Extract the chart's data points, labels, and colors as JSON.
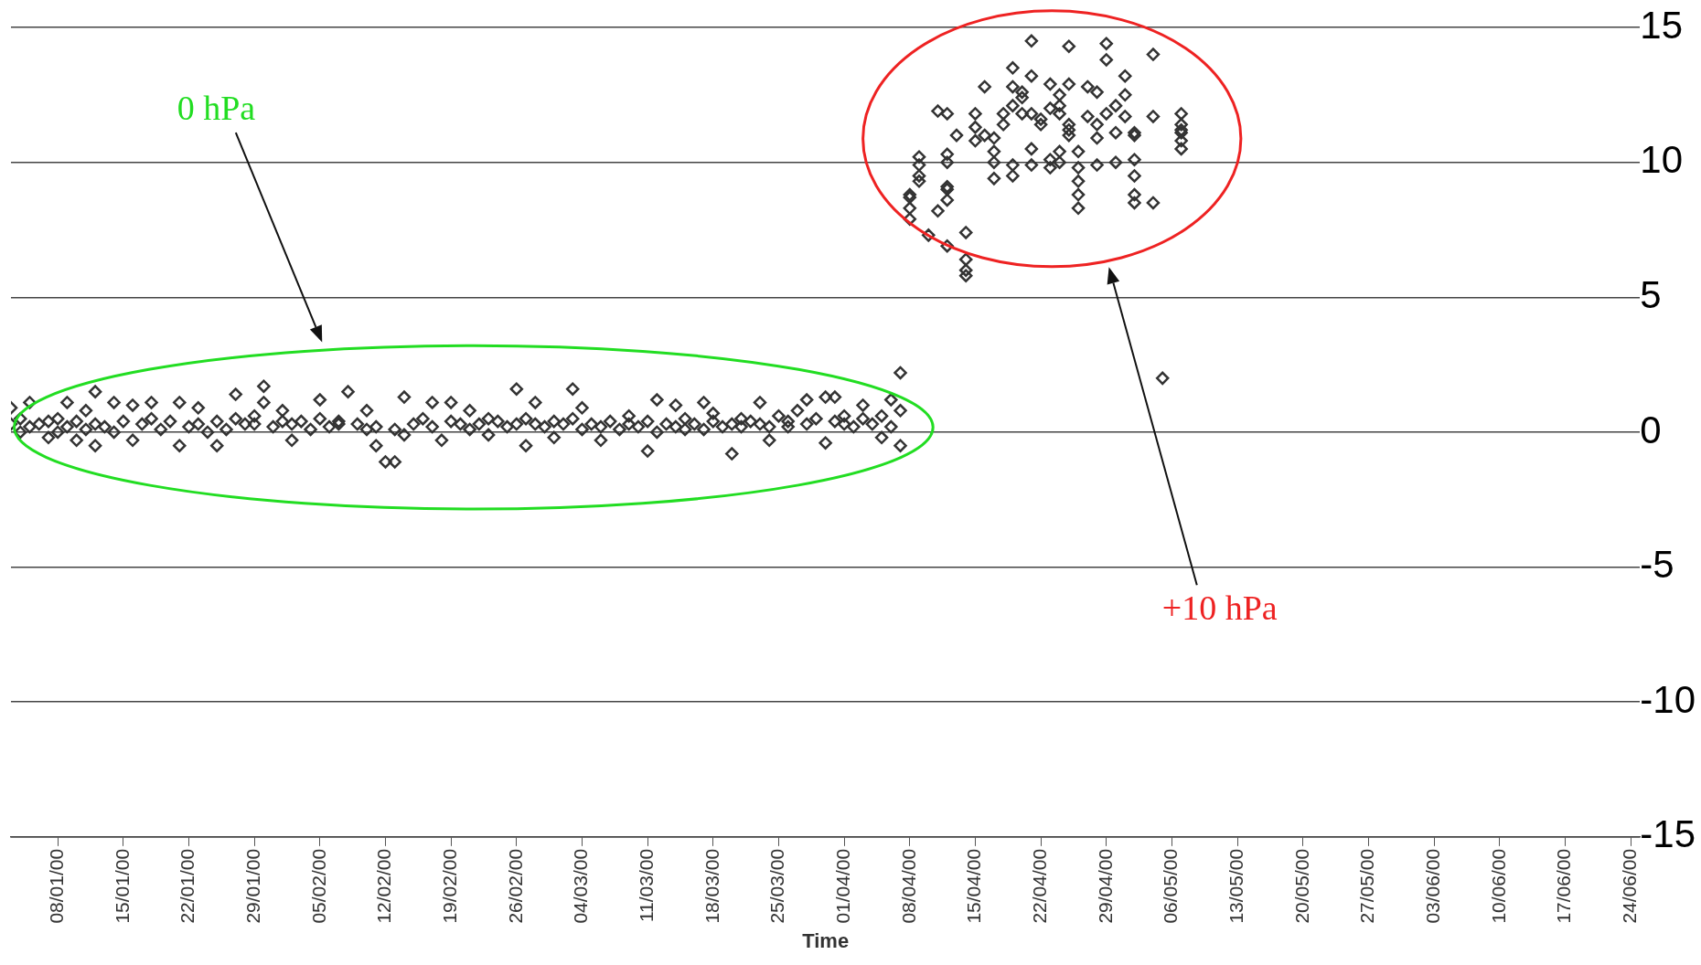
{
  "chart_data": {
    "type": "scatter",
    "xlabel": "Time",
    "annotations": [
      "0 hPa",
      "+10 hPa"
    ],
    "xlim": [
      "2000-01-03",
      "2000-06-25"
    ],
    "xticks": [
      {
        "value": "2000-01-08",
        "label": "08/01/00"
      },
      {
        "value": "2000-01-15",
        "label": "15/01/00"
      },
      {
        "value": "2000-01-22",
        "label": "22/01/00"
      },
      {
        "value": "2000-01-29",
        "label": "29/01/00"
      },
      {
        "value": "2000-02-05",
        "label": "05/02/00"
      },
      {
        "value": "2000-02-12",
        "label": "12/02/00"
      },
      {
        "value": "2000-02-19",
        "label": "19/02/00"
      },
      {
        "value": "2000-02-26",
        "label": "26/02/00"
      },
      {
        "value": "2000-03-04",
        "label": "04/03/00"
      },
      {
        "value": "2000-03-11",
        "label": "11/03/00"
      },
      {
        "value": "2000-03-18",
        "label": "18/03/00"
      },
      {
        "value": "2000-03-25",
        "label": "25/03/00"
      },
      {
        "value": "2000-04-01",
        "label": "01/04/00"
      },
      {
        "value": "2000-04-08",
        "label": "08/04/00"
      },
      {
        "value": "2000-04-15",
        "label": "15/04/00"
      },
      {
        "value": "2000-04-22",
        "label": "22/04/00"
      },
      {
        "value": "2000-04-29",
        "label": "29/04/00"
      },
      {
        "value": "2000-05-06",
        "label": "06/05/00"
      },
      {
        "value": "2000-05-13",
        "label": "13/05/00"
      },
      {
        "value": "2000-05-20",
        "label": "20/05/00"
      },
      {
        "value": "2000-05-27",
        "label": "27/05/00"
      },
      {
        "value": "2000-06-03",
        "label": "03/06/00"
      },
      {
        "value": "2000-06-10",
        "label": "10/06/00"
      },
      {
        "value": "2000-06-17",
        "label": "17/06/00"
      },
      {
        "value": "2000-06-24",
        "label": "24/06/00"
      }
    ],
    "ylim": [
      -15,
      15
    ],
    "yticks": [
      -15,
      -10,
      -5,
      0,
      5,
      10,
      15
    ],
    "grid": "y",
    "marker": "diamond",
    "series": [
      {
        "color": "#333333",
        "x": [
          "2000-01-03",
          "2000-01-03",
          "2000-01-04",
          "2000-01-04",
          "2000-01-05",
          "2000-01-05",
          "2000-01-06",
          "2000-01-07",
          "2000-01-07",
          "2000-01-08",
          "2000-01-08",
          "2000-01-09",
          "2000-01-09",
          "2000-01-10",
          "2000-01-10",
          "2000-01-11",
          "2000-01-11",
          "2000-01-12",
          "2000-01-12",
          "2000-01-12",
          "2000-01-13",
          "2000-01-14",
          "2000-01-14",
          "2000-01-15",
          "2000-01-16",
          "2000-01-16",
          "2000-01-17",
          "2000-01-18",
          "2000-01-18",
          "2000-01-19",
          "2000-01-20",
          "2000-01-21",
          "2000-01-21",
          "2000-01-22",
          "2000-01-23",
          "2000-01-23",
          "2000-01-24",
          "2000-01-25",
          "2000-01-25",
          "2000-01-26",
          "2000-01-27",
          "2000-01-27",
          "2000-01-28",
          "2000-01-29",
          "2000-01-29",
          "2000-01-30",
          "2000-01-30",
          "2000-01-31",
          "2000-02-01",
          "2000-02-01",
          "2000-02-02",
          "2000-02-02",
          "2000-02-03",
          "2000-02-04",
          "2000-02-05",
          "2000-02-05",
          "2000-02-06",
          "2000-02-07",
          "2000-02-07",
          "2000-02-08",
          "2000-02-09",
          "2000-02-10",
          "2000-02-10",
          "2000-02-11",
          "2000-02-11",
          "2000-02-12",
          "2000-02-13",
          "2000-02-13",
          "2000-02-14",
          "2000-02-14",
          "2000-02-15",
          "2000-02-16",
          "2000-02-17",
          "2000-02-17",
          "2000-02-18",
          "2000-02-19",
          "2000-02-19",
          "2000-02-20",
          "2000-02-21",
          "2000-02-21",
          "2000-02-22",
          "2000-02-23",
          "2000-02-23",
          "2000-02-24",
          "2000-02-25",
          "2000-02-26",
          "2000-02-26",
          "2000-02-27",
          "2000-02-27",
          "2000-02-28",
          "2000-02-28",
          "2000-02-29",
          "2000-03-01",
          "2000-03-01",
          "2000-03-02",
          "2000-03-03",
          "2000-03-03",
          "2000-03-04",
          "2000-03-04",
          "2000-03-05",
          "2000-03-06",
          "2000-03-06",
          "2000-03-07",
          "2000-03-08",
          "2000-03-09",
          "2000-03-09",
          "2000-03-10",
          "2000-03-11",
          "2000-03-11",
          "2000-03-12",
          "2000-03-12",
          "2000-03-13",
          "2000-03-14",
          "2000-03-14",
          "2000-03-15",
          "2000-03-15",
          "2000-03-16",
          "2000-03-17",
          "2000-03-17",
          "2000-03-18",
          "2000-03-18",
          "2000-03-19",
          "2000-03-20",
          "2000-03-20",
          "2000-03-21",
          "2000-03-21",
          "2000-03-22",
          "2000-03-23",
          "2000-03-23",
          "2000-03-24",
          "2000-03-24",
          "2000-03-25",
          "2000-03-26",
          "2000-03-26",
          "2000-03-27",
          "2000-03-28",
          "2000-03-28",
          "2000-03-29",
          "2000-03-30",
          "2000-03-30",
          "2000-03-31",
          "2000-03-31",
          "2000-04-01",
          "2000-04-01",
          "2000-04-02",
          "2000-04-03",
          "2000-04-03",
          "2000-04-04",
          "2000-04-05",
          "2000-04-05",
          "2000-04-06",
          "2000-04-06",
          "2000-04-07",
          "2000-04-07",
          "2000-04-07",
          "2000-04-08",
          "2000-04-08",
          "2000-04-08",
          "2000-04-08",
          "2000-04-09",
          "2000-04-09",
          "2000-04-09",
          "2000-04-09",
          "2000-04-10",
          "2000-04-11",
          "2000-04-11",
          "2000-04-12",
          "2000-04-12",
          "2000-04-12",
          "2000-04-12",
          "2000-04-12",
          "2000-04-12",
          "2000-04-12",
          "2000-04-13",
          "2000-04-14",
          "2000-04-14",
          "2000-04-14",
          "2000-04-14",
          "2000-04-15",
          "2000-04-15",
          "2000-04-15",
          "2000-04-16",
          "2000-04-16",
          "2000-04-17",
          "2000-04-17",
          "2000-04-17",
          "2000-04-17",
          "2000-04-18",
          "2000-04-18",
          "2000-04-19",
          "2000-04-19",
          "2000-04-19",
          "2000-04-19",
          "2000-04-19",
          "2000-04-20",
          "2000-04-20",
          "2000-04-20",
          "2000-04-21",
          "2000-04-21",
          "2000-04-21",
          "2000-04-21",
          "2000-04-21",
          "2000-04-22",
          "2000-04-22",
          "2000-04-23",
          "2000-04-23",
          "2000-04-23",
          "2000-04-23",
          "2000-04-24",
          "2000-04-24",
          "2000-04-24",
          "2000-04-24",
          "2000-04-24",
          "2000-04-25",
          "2000-04-25",
          "2000-04-25",
          "2000-04-25",
          "2000-04-25",
          "2000-04-26",
          "2000-04-26",
          "2000-04-26",
          "2000-04-26",
          "2000-04-26",
          "2000-04-27",
          "2000-04-27",
          "2000-04-28",
          "2000-04-28",
          "2000-04-28",
          "2000-04-28",
          "2000-04-29",
          "2000-04-29",
          "2000-04-29",
          "2000-04-30",
          "2000-04-30",
          "2000-04-30",
          "2000-05-01",
          "2000-05-01",
          "2000-05-01",
          "2000-05-02",
          "2000-05-02",
          "2000-05-02",
          "2000-05-02",
          "2000-05-02",
          "2000-05-02",
          "2000-05-04",
          "2000-05-04",
          "2000-05-04",
          "2000-05-05",
          "2000-05-07",
          "2000-05-07",
          "2000-05-07",
          "2000-05-07",
          "2000-05-07",
          "2000-05-07"
        ],
        "values": [
          0.9,
          0.3,
          0.5,
          0.0,
          1.1,
          0.2,
          0.3,
          -0.2,
          0.4,
          0.0,
          0.5,
          1.1,
          0.2,
          -0.3,
          0.4,
          0.8,
          0.1,
          1.5,
          -0.5,
          0.3,
          0.2,
          1.1,
          0.0,
          0.4,
          1.0,
          -0.3,
          0.3,
          1.1,
          0.5,
          0.1,
          0.4,
          1.1,
          -0.5,
          0.2,
          0.9,
          0.3,
          0.0,
          -0.5,
          0.4,
          0.1,
          1.4,
          0.5,
          0.3,
          0.3,
          0.6,
          1.7,
          1.1,
          0.2,
          0.8,
          0.4,
          -0.3,
          0.3,
          0.4,
          0.1,
          1.2,
          0.5,
          0.2,
          0.3,
          0.4,
          1.5,
          0.3,
          0.8,
          0.1,
          -0.5,
          0.2,
          -1.1,
          -1.1,
          0.1,
          1.3,
          -0.1,
          0.3,
          0.5,
          1.1,
          0.2,
          -0.3,
          1.1,
          0.4,
          0.3,
          0.8,
          0.1,
          0.3,
          -0.1,
          0.5,
          0.4,
          0.2,
          1.6,
          0.3,
          -0.5,
          0.5,
          1.1,
          0.3,
          0.2,
          -0.2,
          0.4,
          0.3,
          1.6,
          0.5,
          0.9,
          0.1,
          0.3,
          -0.3,
          0.2,
          0.4,
          0.1,
          0.6,
          0.3,
          0.2,
          -0.7,
          0.4,
          1.2,
          0.0,
          0.3,
          1.0,
          0.2,
          0.1,
          0.5,
          0.3,
          1.1,
          0.1,
          0.7,
          0.4,
          0.2,
          -0.8,
          0.3,
          0.2,
          0.5,
          0.4,
          1.1,
          0.3,
          -0.3,
          0.2,
          0.6,
          0.4,
          0.2,
          0.8,
          1.2,
          0.3,
          0.5,
          1.3,
          -0.4,
          1.3,
          0.4,
          0.3,
          0.6,
          0.2,
          1.0,
          0.5,
          0.3,
          -0.2,
          0.6,
          1.2,
          0.2,
          0.8,
          -0.5,
          2.2,
          8.7,
          8.3,
          7.9,
          8.8,
          10.2,
          9.9,
          9.5,
          9.3,
          7.3,
          8.2,
          11.9,
          11.8,
          10.3,
          10.0,
          9.0,
          8.6,
          9.1,
          6.9,
          11.0,
          7.4,
          6.4,
          5.8,
          6.0,
          11.8,
          10.8,
          11.3,
          12.8,
          11.0,
          10.9,
          9.4,
          10.4,
          10.0,
          11.8,
          11.4,
          13.5,
          12.8,
          12.1,
          9.9,
          9.5,
          12.4,
          11.8,
          12.6,
          14.5,
          13.2,
          11.8,
          10.5,
          9.9,
          11.6,
          11.4,
          12.9,
          12.0,
          9.8,
          10.1,
          10.0,
          10.4,
          12.1,
          11.8,
          12.5,
          11.4,
          11.0,
          11.2,
          14.3,
          12.9,
          9.3,
          8.8,
          8.3,
          9.8,
          10.4,
          12.8,
          11.7,
          9.9,
          11.4,
          12.6,
          10.9,
          14.4,
          13.8,
          11.8,
          12.1,
          10.0,
          11.1,
          13.2,
          11.7,
          12.5,
          11.1,
          9.5,
          8.8,
          8.5,
          10.1,
          11.0,
          14.0,
          11.7,
          8.5,
          2.0,
          11.8,
          11.1,
          11.2,
          11.4,
          10.5,
          10.8
        ]
      }
    ]
  }
}
